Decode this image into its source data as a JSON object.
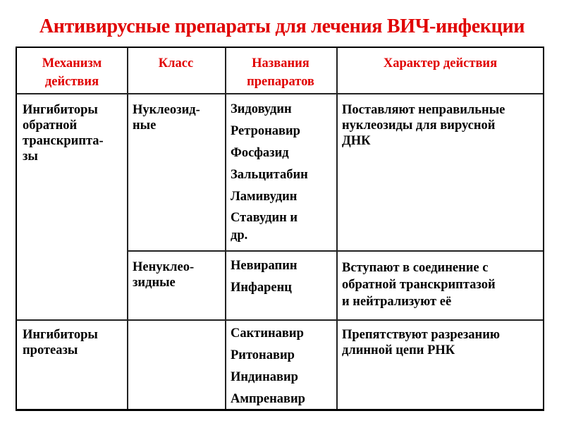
{
  "title": "Антивирусные препараты для лечения ВИЧ-инфекции",
  "colors": {
    "title": "#e00000",
    "header_text": "#e00000",
    "body_text": "#000000",
    "border": "#000000"
  },
  "table": {
    "headers": [
      "Механизм действия",
      "Класс",
      "Названия препаратов",
      "Характер действия"
    ],
    "header_lines": [
      [
        "Механизм",
        "действия"
      ],
      [
        "Класс"
      ],
      [
        "Названия",
        "препаратов"
      ],
      [
        "Характер действия"
      ]
    ],
    "groups": [
      {
        "mechanism": [
          "Ингибиторы",
          "обратной",
          "транскрипта-",
          "зы"
        ],
        "rows": [
          {
            "class": [
              "Нуклеозид-",
              "ные"
            ],
            "drugs": [
              "Зидовудин",
              "Ретронавир",
              "Фосфазид",
              "Зальцитабин",
              "Ламивудин",
              "Ставудин и",
              "др."
            ],
            "action": [
              "Поставляют неправильные",
              "нуклеозиды для вирусной",
              "ДНК"
            ]
          },
          {
            "class": [
              "Ненуклео-",
              "зидные"
            ],
            "drugs": [
              "Невирапин",
              "Инфаренц"
            ],
            "action": [
              "Вступают в соединение с",
              "обратной транскриптазой",
              "и нейтрализуют её"
            ]
          }
        ]
      },
      {
        "mechanism": [
          "Ингибиторы",
          "протеазы"
        ],
        "rows": [
          {
            "class": [],
            "drugs": [
              "Сактинавир",
              "Ритонавир",
              "Индинавир",
              "Ампренавир"
            ],
            "action": [
              "Препятствуют разрезанию",
              "длинной цепи РНК"
            ]
          }
        ]
      }
    ]
  }
}
